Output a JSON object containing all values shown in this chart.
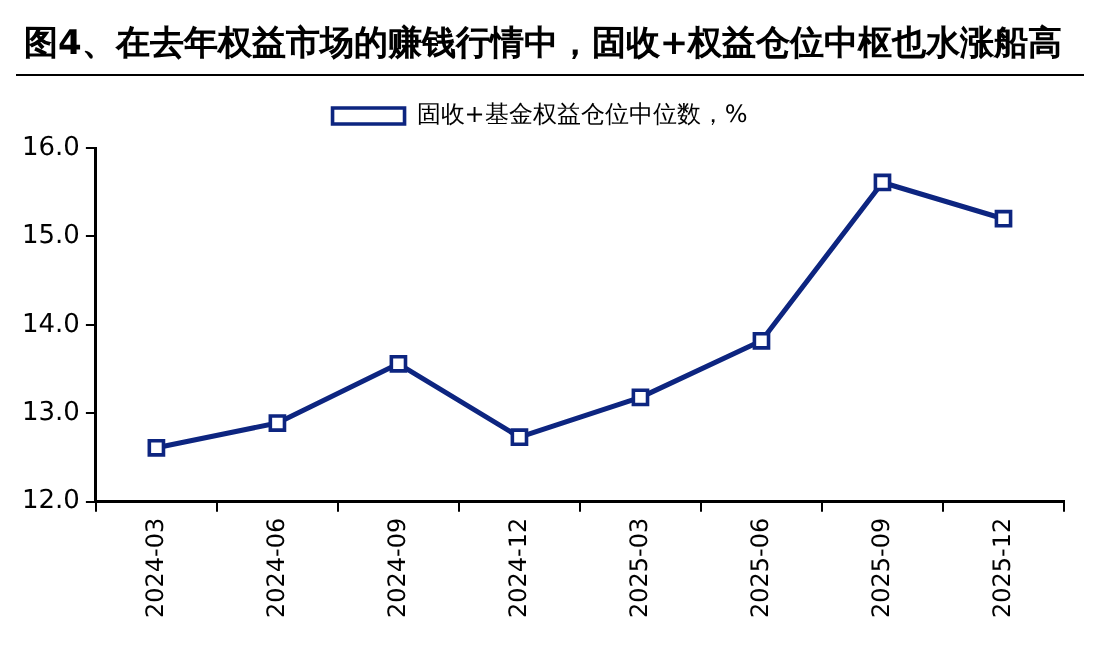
{
  "chart_data": {
    "type": "line",
    "title": "图4、在去年权益市场的赚钱行情中，固收+权益仓位中枢也水涨船高",
    "categories": [
      "2024-03",
      "2024-06",
      "2024-09",
      "2024-12",
      "2025-03",
      "2025-06",
      "2025-09",
      "2025-12"
    ],
    "series": [
      {
        "name": "固收+基金权益仓位中位数，%",
        "color": "#0d2580",
        "values": [
          12.61,
          12.89,
          13.56,
          12.73,
          13.18,
          13.82,
          15.61,
          15.2
        ]
      }
    ],
    "ylim": [
      12,
      16
    ],
    "yticks": [
      {
        "value": 12,
        "label": "12.0"
      },
      {
        "value": 13,
        "label": "13.0"
      },
      {
        "value": 14,
        "label": "14.0"
      },
      {
        "value": 15,
        "label": "15.0"
      },
      {
        "value": 16,
        "label": "16.0"
      }
    ],
    "grid": false,
    "legend": "top",
    "marker": "square",
    "line_style": "solid"
  }
}
